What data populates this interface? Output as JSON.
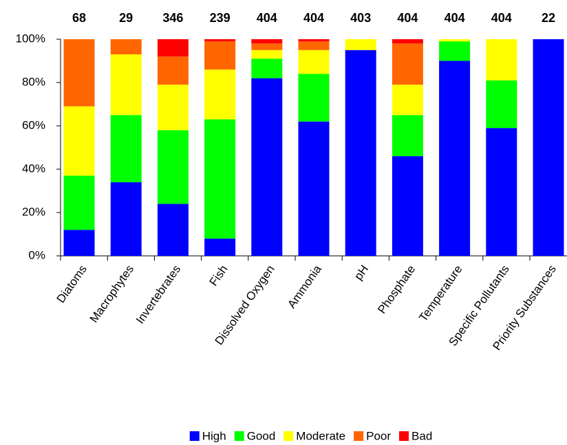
{
  "chart_data": {
    "type": "stacked_bar_100",
    "categories": [
      "Diatoms",
      "Macrophytes",
      "Invertebrates",
      "Fish",
      "Dissolved Oxygen",
      "Ammonia",
      "pH",
      "Phosphate",
      "Temperature",
      "Specific Pollutants",
      "Priority Substances"
    ],
    "counts": [
      68,
      29,
      346,
      239,
      404,
      404,
      403,
      404,
      404,
      404,
      22
    ],
    "series": [
      {
        "name": "High",
        "color": "#0000ff",
        "values": [
          12,
          34,
          24,
          8,
          82,
          62,
          95,
          46,
          90,
          59,
          100
        ]
      },
      {
        "name": "Good",
        "color": "#00ff00",
        "values": [
          25,
          31,
          34,
          55,
          9,
          22,
          0,
          19,
          9,
          22,
          0
        ]
      },
      {
        "name": "Moderate",
        "color": "#ffff00",
        "values": [
          32,
          28,
          21,
          23,
          4,
          11,
          5,
          14,
          1,
          19,
          0
        ]
      },
      {
        "name": "Poor",
        "color": "#ff6600",
        "values": [
          31,
          7,
          13,
          13,
          3,
          4,
          0,
          19,
          0,
          0,
          0
        ]
      },
      {
        "name": "Bad",
        "color": "#ff0000",
        "values": [
          0,
          0,
          8,
          1,
          2,
          1,
          0,
          2,
          0,
          0,
          0
        ]
      }
    ],
    "ylim": [
      0,
      100
    ],
    "yticks": [
      {
        "value": 0,
        "label": "0%"
      },
      {
        "value": 20,
        "label": "20%"
      },
      {
        "value": 40,
        "label": "40%"
      },
      {
        "value": 60,
        "label": "60%"
      },
      {
        "value": 80,
        "label": "80%"
      },
      {
        "value": 100,
        "label": "100%"
      }
    ],
    "grid": false,
    "legend": "bottom"
  }
}
